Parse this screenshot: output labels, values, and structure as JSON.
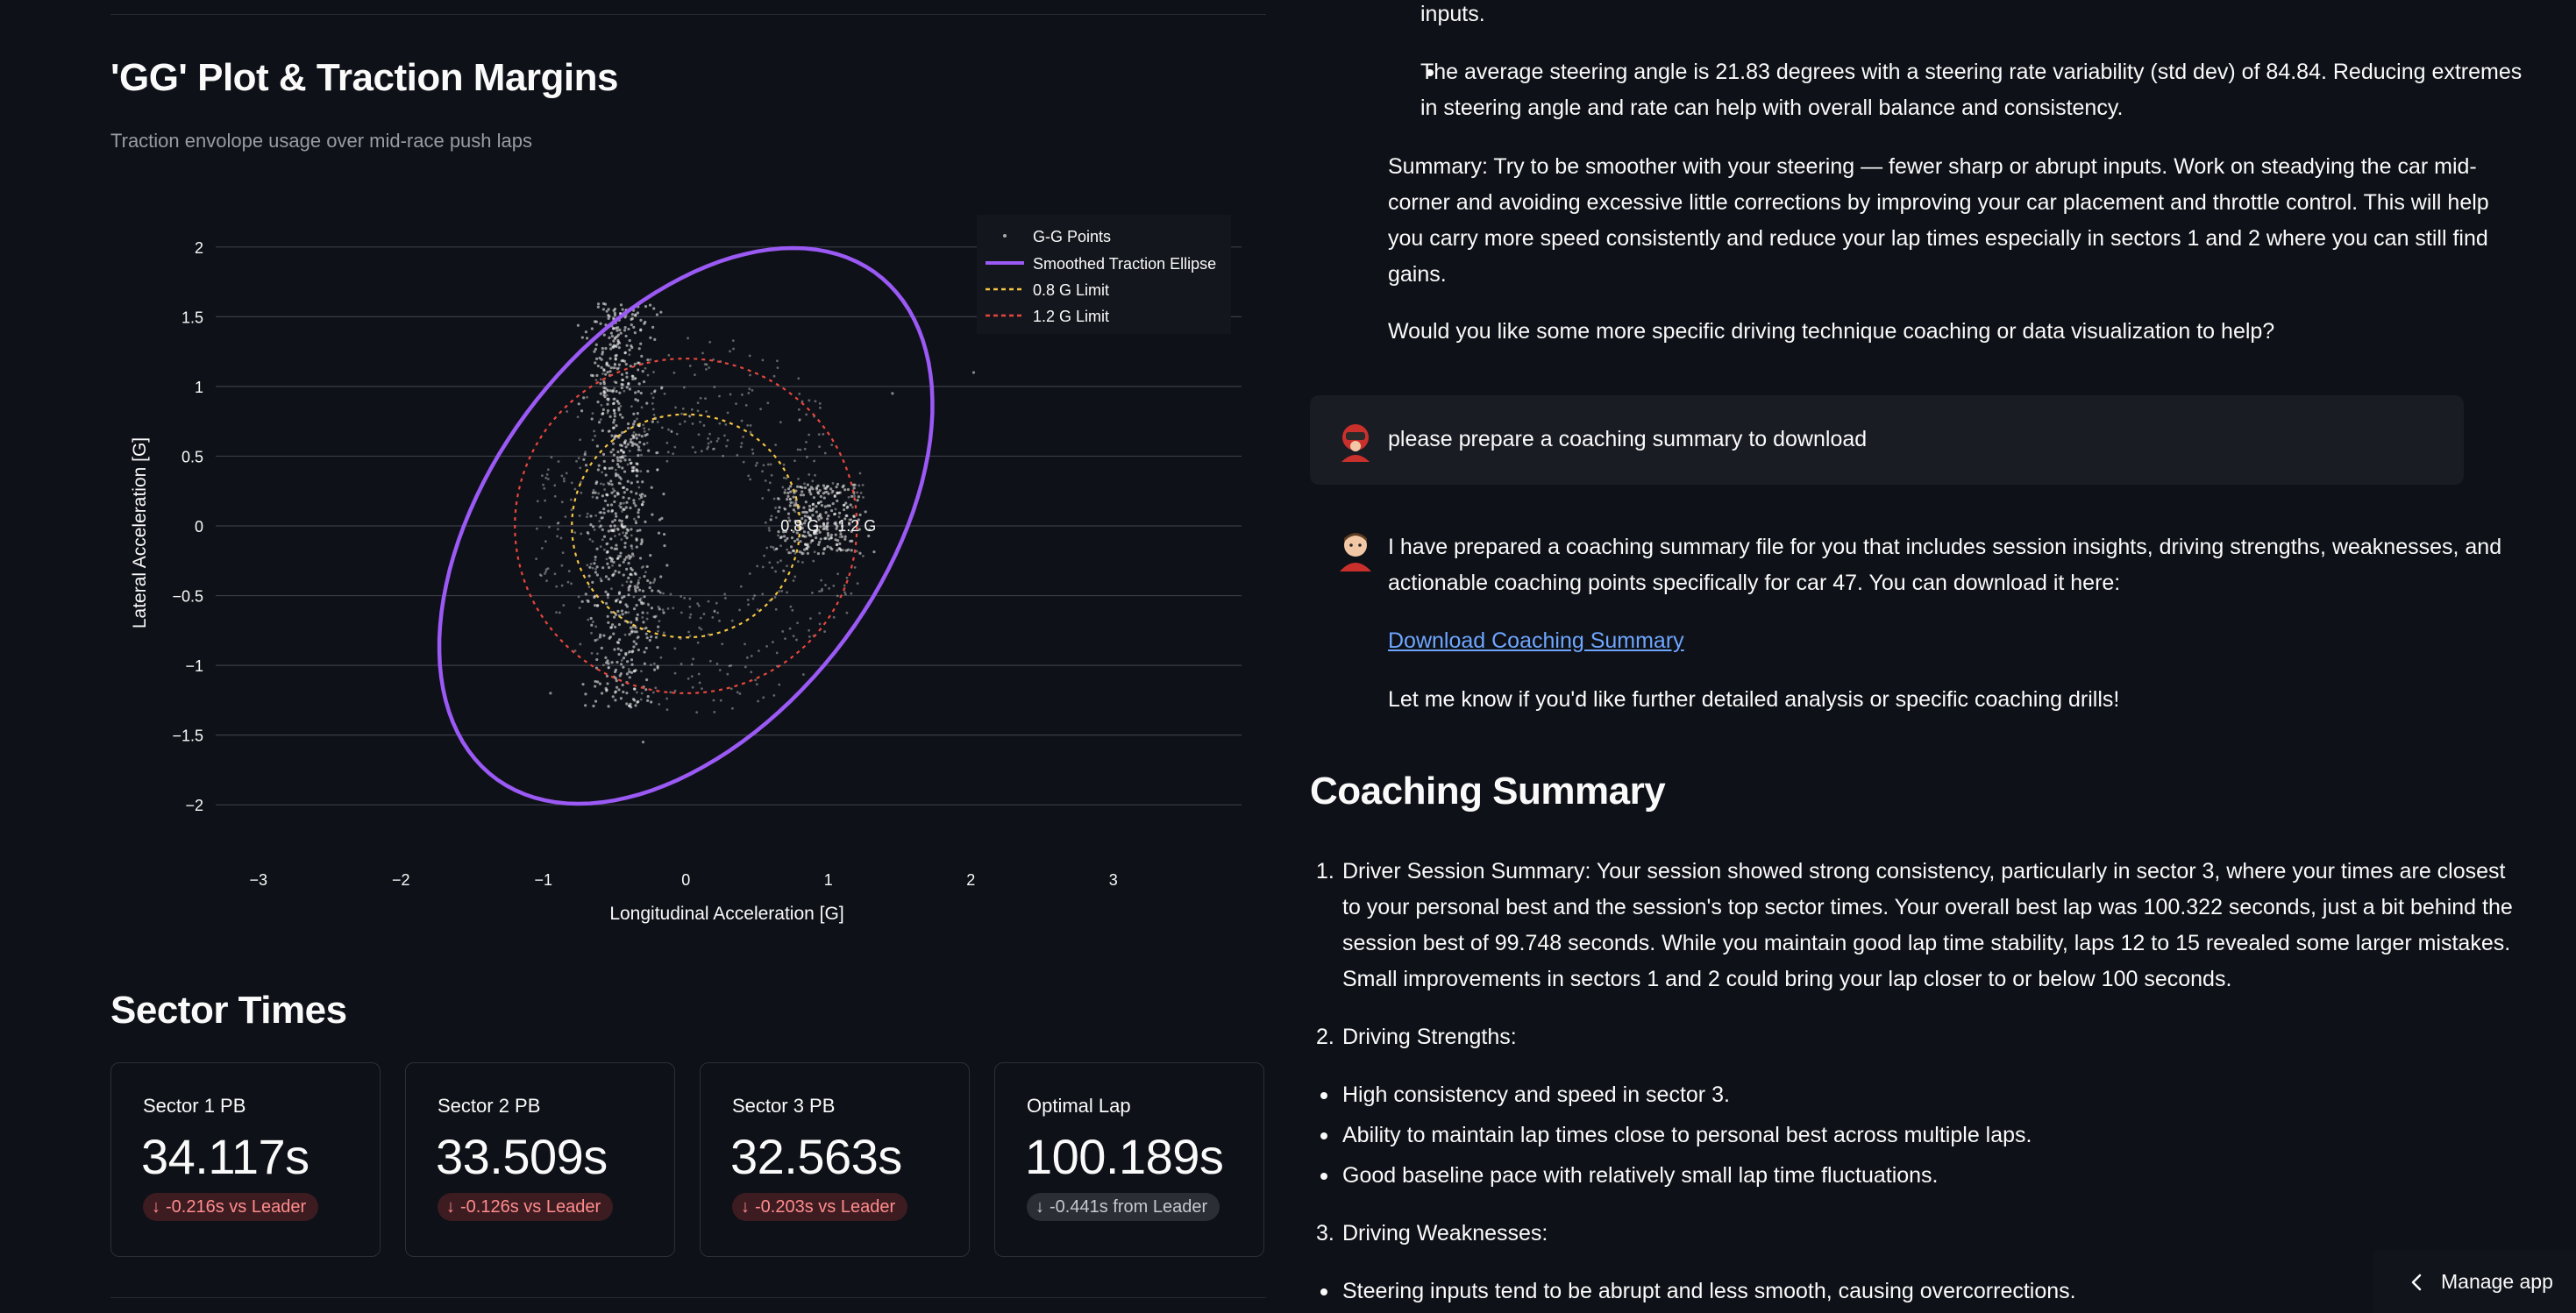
{
  "left": {
    "gg_title": "'GG' Plot & Traction Margins",
    "gg_caption": "Traction envolope usage over mid-race push laps",
    "sector_title": "Sector Times",
    "cards": [
      {
        "label": "Sector 1 PB",
        "value": "34.117s",
        "delta": "-0.216s vs Leader",
        "delta_style": "red"
      },
      {
        "label": "Sector 2 PB",
        "value": "33.509s",
        "delta": "-0.126s vs Leader",
        "delta_style": "red"
      },
      {
        "label": "Sector 3 PB",
        "value": "32.563s",
        "delta": "-0.203s vs Leader",
        "delta_style": "red"
      },
      {
        "label": "Optimal Lap",
        "value": "100.189s",
        "delta": "-0.441s from Leader",
        "delta_style": "gray"
      }
    ]
  },
  "chart_data": {
    "type": "scatter",
    "xlabel": "Longitudinal Acceleration [G]",
    "ylabel": "Lateral Acceleration [G]",
    "xlim": [
      -3.3,
      3.9
    ],
    "ylim": [
      -2.2,
      2.2
    ],
    "x_ticks": [
      -3,
      -2,
      -1,
      0,
      1,
      2,
      3
    ],
    "x_tick_labels": [
      "−3",
      "−2",
      "−1",
      "0",
      "1",
      "2",
      "3"
    ],
    "y_ticks": [
      2,
      1.5,
      1,
      0.5,
      0,
      -0.5,
      -1,
      -1.5,
      -2
    ],
    "y_tick_labels": [
      "2",
      "1.5",
      "1",
      "0.5",
      "0",
      "−0.5",
      "−1",
      "−1.5",
      "−2"
    ],
    "grid": "horizontal",
    "legend_position": "top-right",
    "legend": [
      "G-G Points",
      "Smoothed Traction Ellipse",
      "0.8 G Limit",
      "1.2 G Limit"
    ],
    "ellipse": {
      "center": [
        0,
        0
      ],
      "semi_major": 2.25,
      "semi_minor": 1.38,
      "angle_deg": 54
    },
    "limit_circles": [
      {
        "name": "0.8 G Limit",
        "radius": 0.8,
        "color": "#f5c543"
      },
      {
        "name": "1.2 G Limit",
        "radius": 1.2,
        "color": "#e8473d"
      }
    ],
    "annotations": [
      {
        "text": "0.8 G",
        "x": 0.8,
        "y": 0
      },
      {
        "text": "1.2 G",
        "x": 1.2,
        "y": 0
      }
    ],
    "clusters": [
      {
        "x_center": -0.45,
        "y_range": [
          -1.3,
          1.6
        ],
        "x_spread": 0.12,
        "count": 700
      },
      {
        "x_center": 0.95,
        "y_range": [
          -0.2,
          0.3
        ],
        "x_spread": 0.15,
        "count": 260
      },
      {
        "x_center": 0.3,
        "y_range": [
          -1.2,
          1.1
        ],
        "x_spread": 0.5,
        "count": 600
      }
    ],
    "colors": {
      "points": "#ffffff",
      "ellipse": "#9b59f5",
      "limit_08": "#f5c543",
      "limit_12": "#e8473d"
    }
  },
  "right": {
    "top_line": "inputs.",
    "bullet1_line1": "The average steering angle is 21.83 degrees with a steering rate variability (std dev) of 84.84. Reducing extremes",
    "bullet1_line2": "in steering angle and rate can help with overall balance and consistency.",
    "summary_lines": [
      "Summary: Try to be smoother with your steering — fewer sharp or abrupt inputs. Work on steadying the car mid-",
      "corner and avoiding excessive little corrections by improving your car placement and throttle control. This will help",
      "you carry more speed consistently and reduce your lap times especially in sectors 1 and 2 where you can still find",
      "gains."
    ],
    "question": "Would you like some more specific driving technique coaching or data visualization to help?",
    "user_message": "please prepare a coaching summary to download",
    "assistant_line1": "I have prepared a coaching summary file for you that includes session insights, driving strengths, weaknesses, and",
    "assistant_line2": "actionable coaching points specifically for car 47. You can download it here:",
    "download_link": "Download Coaching Summary",
    "assistant_close": "Let me know if you'd like further detailed analysis or specific coaching drills!",
    "coaching_title": "Coaching Summary",
    "item1_num": "1.",
    "item1_lines": [
      "Driver Session Summary: Your session showed strong consistency, particularly in sector 3, where your times are closest",
      "to your personal best and the session's top sector times. Your overall best lap was 100.322 seconds, just a bit behind the",
      "session best of 99.748 seconds. While you maintain good lap time stability, laps 12 to 15 revealed some larger mistakes.",
      "Small improvements in sectors 1 and 2 could bring your lap closer to or below 100 seconds."
    ],
    "item2_num": "2.",
    "item2": "Driving Strengths:",
    "strengths": [
      "High consistency and speed in sector 3.",
      "Ability to maintain lap times close to personal best across multiple laps.",
      "Good baseline pace with relatively small lap time fluctuations."
    ],
    "item3_num": "3.",
    "item3": "Driving Weaknesses:",
    "weakness1": "Steering inputs tend to be abrupt and less smooth, causing overcorrections."
  },
  "manage": {
    "label": "Manage app",
    "icon": "chevron-left-icon"
  }
}
